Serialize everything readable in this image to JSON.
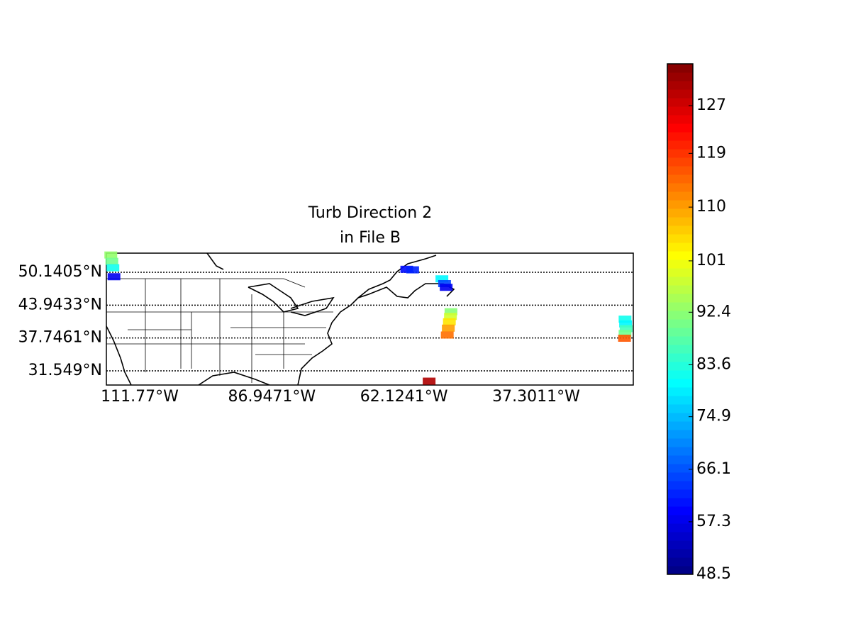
{
  "chart_data": {
    "type": "map-scatter",
    "title_lines": [
      "Turb Direction 2",
      "in File B"
    ],
    "xlim": [
      -118.03,
      -19.05
    ],
    "ylim": [
      28.87,
      53.75
    ],
    "xticks": [
      {
        "value": -111.77,
        "label": "111.77°W"
      },
      {
        "value": -86.9471,
        "label": "86.9471°W"
      },
      {
        "value": -62.1241,
        "label": "62.1241°W"
      },
      {
        "value": -37.3011,
        "label": "37.3011°W"
      }
    ],
    "yticks": [
      {
        "value": 31.549,
        "label": "31.549°N"
      },
      {
        "value": 37.7461,
        "label": "37.7461°N"
      },
      {
        "value": 43.9433,
        "label": "43.9433°N"
      },
      {
        "value": 50.1405,
        "label": "50.1405°N"
      }
    ],
    "colormap": "jet",
    "clim": [
      48.5,
      134
    ],
    "cticks": [
      48.5,
      57.3,
      66.1,
      74.9,
      83.6,
      92.4,
      101,
      110,
      119,
      127
    ],
    "points": {
      "lon": [
        -117.2,
        -117.0,
        -116.8,
        -116.6,
        -61.6,
        -60.5,
        -55.0,
        -54.5,
        -54.2,
        -53.3,
        -53.4,
        -53.6,
        -53.8,
        -54.0,
        -20.6,
        -20.5,
        -20.4,
        -20.6,
        -20.7,
        -57.4
      ],
      "lat": [
        53.4,
        52.2,
        51.0,
        49.3,
        50.7,
        50.6,
        48.9,
        48.0,
        47.3,
        42.7,
        41.8,
        40.8,
        39.6,
        38.3,
        41.3,
        40.4,
        39.5,
        38.6,
        37.7,
        29.6
      ],
      "values": [
        93,
        90,
        82,
        58,
        60,
        62,
        80,
        65,
        58,
        92,
        98,
        104,
        110,
        114,
        82,
        80,
        86,
        90,
        116,
        130
      ]
    },
    "grid": true
  }
}
